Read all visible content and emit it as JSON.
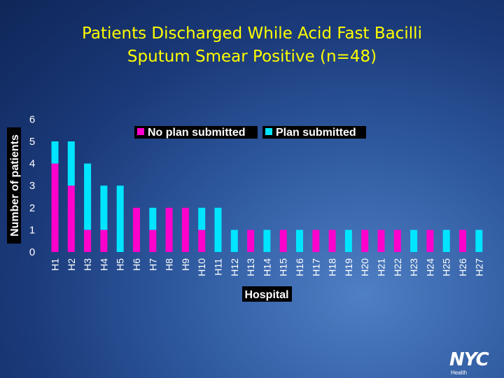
{
  "slide": {
    "title_line1": "Patients Discharged While Acid Fast Bacilli",
    "title_line2": "Sputum Smear Positive (n=48)"
  },
  "logo": {
    "mark": "NYC",
    "sub": "Health"
  },
  "colors": {
    "no_plan": "#ff00cc",
    "plan": "#00e5ff",
    "title": "#ffff00"
  },
  "chart_data": {
    "type": "bar",
    "stacked": true,
    "xlabel": "Hospital",
    "ylabel": "Number of patients",
    "ylim": [
      0,
      6
    ],
    "yticks": [
      0,
      1,
      2,
      3,
      4,
      5,
      6
    ],
    "grid": false,
    "legend_position": "top",
    "categories": [
      "H1",
      "H2",
      "H3",
      "H4",
      "H5",
      "H6",
      "H7",
      "H8",
      "H9",
      "H10",
      "H11",
      "H12",
      "H13",
      "H14",
      "H15",
      "H16",
      "H17",
      "H18",
      "H19",
      "H20",
      "H21",
      "H22",
      "H23",
      "H24",
      "H25",
      "H26",
      "H27"
    ],
    "series": [
      {
        "name": "No plan submitted",
        "values": [
          4,
          3,
          1,
          1,
          0,
          2,
          1,
          2,
          2,
          1,
          0,
          0,
          1,
          0,
          1,
          0,
          1,
          1,
          0,
          1,
          1,
          1,
          0,
          1,
          0,
          1,
          0
        ]
      },
      {
        "name": "Plan submitted",
        "values": [
          1,
          2,
          3,
          2,
          3,
          0,
          1,
          0,
          0,
          1,
          2,
          1,
          0,
          1,
          0,
          1,
          0,
          0,
          1,
          0,
          0,
          0,
          1,
          0,
          1,
          0,
          1
        ]
      }
    ]
  }
}
